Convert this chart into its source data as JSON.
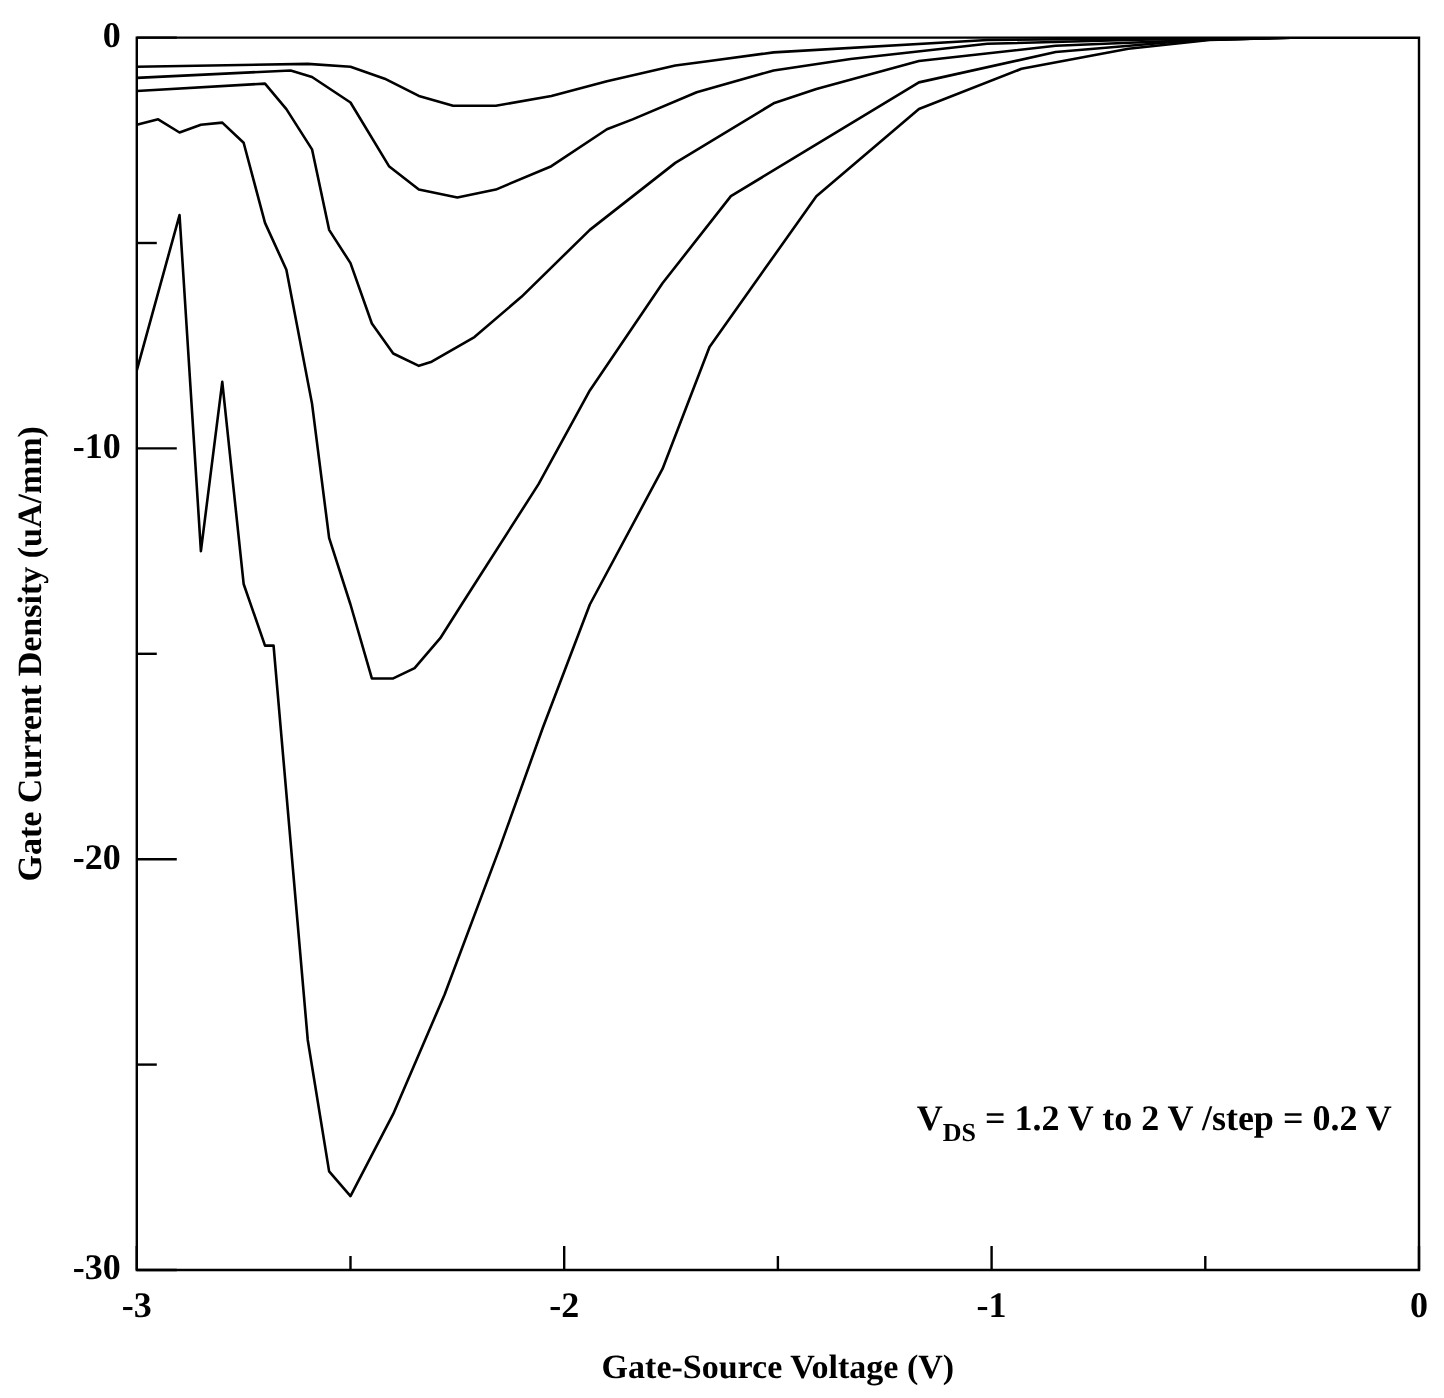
{
  "chart_data": {
    "type": "line",
    "xlabel": "Gate-Source Voltage (V)",
    "ylabel": "Gate Current Density (uA/mm)",
    "annotations": [
      "V$_{DS}$ = 1.2 V to 2 V /step = 0.2 V"
    ],
    "xlim": [
      -3,
      0
    ],
    "ylim": [
      -30,
      0
    ],
    "xticks": [
      -3,
      {
        "value": -2.5,
        "label": null
      },
      -2,
      {
        "value": -1.5,
        "label": null
      },
      -1,
      {
        "value": -0.5,
        "label": null
      },
      0
    ],
    "yticks": [
      -30,
      {
        "value": -25,
        "label": null
      },
      -20,
      {
        "value": -15,
        "label": null
      },
      -10,
      {
        "value": -5,
        "label": null
      },
      0
    ],
    "grid": false,
    "legend": false,
    "marker": "none",
    "line_style": "solid",
    "series": [
      {
        "color": "#000000",
        "x": [
          -3,
          -2.6,
          -2.5,
          -2.42,
          -2.34,
          -2.26,
          -2.16,
          -2.03,
          -1.9,
          -1.74,
          -1.66,
          -1.51,
          -1.01,
          -0.5,
          0
        ],
        "values": [
          -0.71,
          -0.64,
          -0.71,
          -1,
          -1.42,
          -1.66,
          -1.66,
          -1.42,
          -1.06,
          -0.68,
          -0.57,
          -0.36,
          -0.06,
          0,
          0
        ]
      },
      {
        "color": "#000000",
        "x": [
          -3,
          -2.64,
          -2.59,
          -2.5,
          -2.41,
          -2.34,
          -2.25,
          -2.16,
          -2.03,
          -1.9,
          -1.84,
          -1.69,
          -1.51,
          -1.33,
          -1.01,
          -0.68,
          -0.4,
          0
        ],
        "values": [
          -0.98,
          -0.8,
          -0.96,
          -1.58,
          -3.13,
          -3.7,
          -3.89,
          -3.7,
          -3.13,
          -2.23,
          -1.99,
          -1.33,
          -0.8,
          -0.52,
          -0.15,
          -0.06,
          0,
          0
        ]
      },
      {
        "color": "#000000",
        "x": [
          -3,
          -2.7,
          -2.65,
          -2.59,
          -2.55,
          -2.5,
          -2.45,
          -2.4,
          -2.34,
          -2.31,
          -2.21,
          -2.1,
          -1.94,
          -1.74,
          -1.51,
          -1.41,
          -1.17,
          -0.85,
          -0.52,
          -0.3,
          0
        ],
        "values": [
          -1.3,
          -1.12,
          -1.74,
          -2.72,
          -4.68,
          -5.49,
          -6.96,
          -7.69,
          -7.99,
          -7.89,
          -7.29,
          -6.31,
          -4.68,
          -3.05,
          -1.6,
          -1.25,
          -0.57,
          -0.2,
          -0.06,
          0,
          0
        ]
      },
      {
        "color": "#000000",
        "x": [
          -3,
          -2.95,
          -2.9,
          -2.85,
          -2.8,
          -2.75,
          -2.7,
          -2.65,
          -2.59,
          -2.55,
          -2.5,
          -2.45,
          -2.4,
          -2.35,
          -2.29,
          -2.24,
          -2.2,
          -2.06,
          -1.94,
          -1.77,
          -1.61,
          -1.41,
          -1.17,
          -0.85,
          -0.52,
          -0.3,
          0
        ],
        "values": [
          -2.12,
          -1.99,
          -2.31,
          -2.12,
          -2.07,
          -2.56,
          -4.51,
          -5.65,
          -8.91,
          -12.18,
          -13.8,
          -15.6,
          -15.6,
          -15.35,
          -14.62,
          -13.8,
          -13.15,
          -10.87,
          -8.59,
          -5.98,
          -3.86,
          -2.6,
          -1.09,
          -0.35,
          -0.06,
          0,
          0
        ]
      },
      {
        "color": "#000000",
        "x": [
          -3,
          -2.9,
          -2.85,
          -2.8,
          -2.75,
          -2.7,
          -2.68,
          -2.6,
          -2.55,
          -2.5,
          -2.4,
          -2.28,
          -2.15,
          -2.05,
          -1.94,
          -1.77,
          -1.66,
          -1.41,
          -1.17,
          -0.93,
          -0.68,
          -0.49,
          -0.3,
          0
        ],
        "values": [
          -8.1,
          -4.32,
          -12.5,
          -8.38,
          -13.3,
          -14.8,
          -14.8,
          -24.4,
          -27.6,
          -28.2,
          -26.2,
          -23.3,
          -19.7,
          -16.8,
          -13.8,
          -10.5,
          -7.53,
          -3.86,
          -1.74,
          -0.76,
          -0.27,
          -0.06,
          0,
          0
        ]
      }
    ]
  }
}
